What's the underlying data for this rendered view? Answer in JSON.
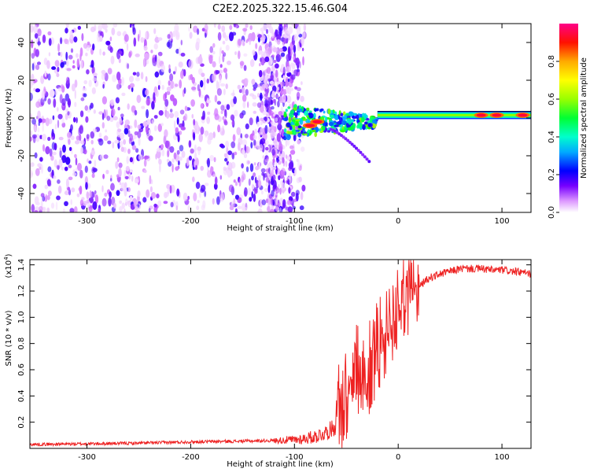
{
  "title": "C2E2.2025.322.15.46.G04",
  "chart_data": [
    {
      "type": "heatmap",
      "title": "C2E2.2025.322.15.46.G04",
      "xlabel": "Height of straight line (km)",
      "ylabel": "Frequency (Hz)",
      "xlim": [
        -355,
        128
      ],
      "ylim": [
        -50,
        50
      ],
      "x_ticks": [
        -300,
        -200,
        -100,
        0,
        100
      ],
      "y_ticks": [
        -40,
        -20,
        0,
        20,
        40
      ],
      "colorbar": {
        "label": "Normalized spectral amplitude",
        "range": [
          0,
          1
        ],
        "ticks": [
          "0.0",
          "0.2",
          "0.4",
          "0.6",
          "0.8"
        ],
        "colormap": [
          "#ffffff",
          "#cc66ff",
          "#5500ff",
          "#0000ff",
          "#00bbff",
          "#00ffbb",
          "#00ff00",
          "#aaff00",
          "#ffff00",
          "#ffaa00",
          "#ff0000",
          "#ff0080"
        ]
      },
      "features": {
        "noise_region_x": [
          -355,
          -105
        ],
        "transition_x": [
          -110,
          -20
        ],
        "signal_line_freq": 1.5,
        "signal_line_x": [
          -20,
          128
        ],
        "secondary_trace": {
          "x": [
            -65,
            -28
          ],
          "freq": [
            -6,
            -23
          ]
        },
        "bright_spots": [
          {
            "x": 80,
            "y": 1.5
          },
          {
            "x": 95,
            "y": 1.5
          },
          {
            "x": 120,
            "y": 1.5
          },
          {
            "x": -85,
            "y": -4
          },
          {
            "x": -78,
            "y": -2
          }
        ]
      }
    },
    {
      "type": "line",
      "title": "",
      "xlabel": "Height of straight line (km)",
      "ylabel": "SNR (10 * v/v)",
      "y_scale_label": "(x10",
      "y_scale_exponent": "4",
      "xlim": [
        -355,
        128
      ],
      "ylim": [
        0,
        1.44
      ],
      "x_ticks": [
        -300,
        -200,
        -100,
        0,
        100
      ],
      "y_ticks": [
        0.2,
        0.4,
        0.6,
        0.8,
        1.0,
        1.2,
        1.4
      ],
      "line_color": "#ee2222",
      "series": [
        {
          "name": "",
          "points": [
            [
              -355,
              0.03
            ],
            [
              -300,
              0.035
            ],
            [
              -250,
              0.04
            ],
            [
              -200,
              0.05
            ],
            [
              -150,
              0.055
            ],
            [
              -120,
              0.06
            ],
            [
              -100,
              0.065
            ],
            [
              -90,
              0.075
            ],
            [
              -80,
              0.09
            ],
            [
              -70,
              0.12
            ],
            [
              -60,
              0.17
            ],
            [
              -55,
              0.22
            ],
            [
              -50,
              0.3
            ],
            [
              -45,
              0.45
            ],
            [
              -40,
              0.55
            ],
            [
              -35,
              0.5
            ],
            [
              -30,
              0.45
            ],
            [
              -25,
              0.55
            ],
            [
              -20,
              0.65
            ],
            [
              -15,
              0.72
            ],
            [
              -10,
              0.78
            ],
            [
              -5,
              0.85
            ],
            [
              0,
              0.95
            ],
            [
              5,
              1.05
            ],
            [
              10,
              1.12
            ],
            [
              15,
              1.18
            ],
            [
              20,
              1.23
            ],
            [
              25,
              1.27
            ],
            [
              30,
              1.3
            ],
            [
              40,
              1.33
            ],
            [
              50,
              1.35
            ],
            [
              60,
              1.37
            ],
            [
              70,
              1.37
            ],
            [
              80,
              1.37
            ],
            [
              90,
              1.36
            ],
            [
              100,
              1.36
            ],
            [
              110,
              1.35
            ],
            [
              120,
              1.34
            ],
            [
              128,
              1.33
            ]
          ]
        }
      ]
    }
  ]
}
